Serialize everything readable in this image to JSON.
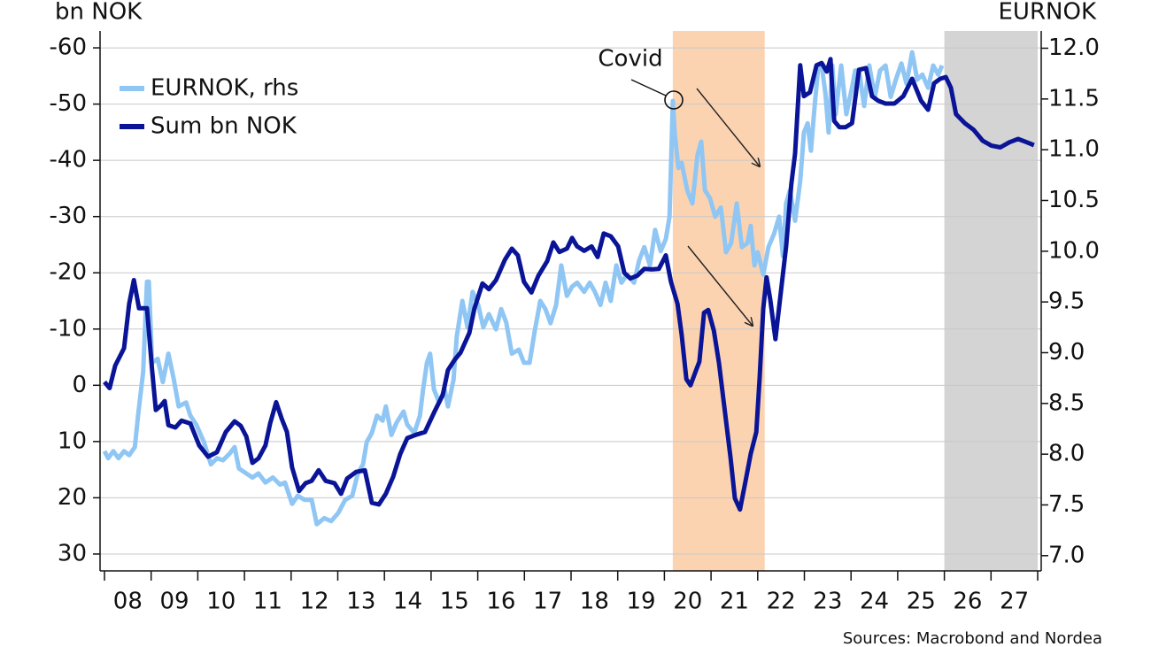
{
  "chart_data": {
    "type": "line",
    "axis_labels": {
      "y": "bn NOK",
      "y2": "EURNOK"
    },
    "source": "Sources: Macrobond and Nordea",
    "annotations": [
      {
        "text": "Covid"
      }
    ],
    "xlim": [
      2008,
      2028
    ],
    "xticks": [
      {
        "value": 2008,
        "label": "08"
      },
      {
        "value": 2009,
        "label": "09"
      },
      {
        "value": 2010,
        "label": "10"
      },
      {
        "value": 2011,
        "label": "11"
      },
      {
        "value": 2012,
        "label": "12"
      },
      {
        "value": 2013,
        "label": "13"
      },
      {
        "value": 2014,
        "label": "14"
      },
      {
        "value": 2015,
        "label": "15"
      },
      {
        "value": 2016,
        "label": "16"
      },
      {
        "value": 2017,
        "label": "17"
      },
      {
        "value": 2018,
        "label": "18"
      },
      {
        "value": 2019,
        "label": "19"
      },
      {
        "value": 2020,
        "label": "20"
      },
      {
        "value": 2021,
        "label": "21"
      },
      {
        "value": 2022,
        "label": "22"
      },
      {
        "value": 2023,
        "label": "23"
      },
      {
        "value": 2024,
        "label": "24"
      },
      {
        "value": 2025,
        "label": "25"
      },
      {
        "value": 2026,
        "label": "26"
      },
      {
        "value": 2027,
        "label": "27"
      }
    ],
    "ylim": [
      33,
      -63
    ],
    "yticks": [
      -60,
      -50,
      -40,
      -30,
      -20,
      -10,
      0,
      10,
      20,
      30
    ],
    "y2lim": [
      6.85,
      12.17
    ],
    "y2ticks": [
      {
        "value": 12,
        "label": "12.0"
      },
      11.5,
      {
        "value": 11,
        "label": "11.0"
      },
      10.5,
      {
        "value": 10,
        "label": "10.0"
      },
      9.5,
      {
        "value": 9,
        "label": "9.0"
      },
      8.5,
      {
        "value": 8,
        "label": "8.0"
      },
      7.5,
      {
        "value": 7,
        "label": "7.0"
      }
    ],
    "grid": true,
    "shaded_regions": [
      {
        "x": [
          2020.18,
          2022.15
        ],
        "color": "#fcd3b1"
      },
      {
        "x": [
          2026.0,
          2028.0
        ],
        "color": "#d4d4d4"
      }
    ],
    "series": [
      {
        "name": "EURNOK, rhs",
        "color": "#8fc6f4",
        "axis": "y2",
        "x": [
          2008.0,
          2008.08,
          2008.19,
          2008.3,
          2008.42,
          2008.53,
          2008.65,
          2008.72,
          2008.83,
          2008.91,
          2008.95,
          2009.02,
          2009.14,
          2009.25,
          2009.37,
          2009.48,
          2009.59,
          2009.75,
          2009.84,
          2009.97,
          2010.13,
          2010.28,
          2010.41,
          2010.54,
          2010.69,
          2010.79,
          2010.88,
          2011.04,
          2011.17,
          2011.3,
          2011.45,
          2011.61,
          2011.76,
          2011.87,
          2012.02,
          2012.14,
          2012.29,
          2012.44,
          2012.55,
          2012.71,
          2012.86,
          2013.01,
          2013.16,
          2013.31,
          2013.43,
          2013.54,
          2013.62,
          2013.73,
          2013.84,
          2013.96,
          2014.03,
          2014.15,
          2014.26,
          2014.41,
          2014.49,
          2014.64,
          2014.76,
          2014.83,
          2014.91,
          2014.98,
          2015.06,
          2015.17,
          2015.29,
          2015.36,
          2015.48,
          2015.55,
          2015.67,
          2015.78,
          2015.89,
          2016.01,
          2016.12,
          2016.24,
          2016.39,
          2016.5,
          2016.61,
          2016.73,
          2016.88,
          2016.99,
          2017.11,
          2017.22,
          2017.34,
          2017.45,
          2017.56,
          2017.68,
          2017.79,
          2017.91,
          2018.02,
          2018.13,
          2018.28,
          2018.4,
          2018.51,
          2018.63,
          2018.74,
          2018.85,
          2018.97,
          2019.08,
          2019.2,
          2019.35,
          2019.46,
          2019.57,
          2019.69,
          2019.8,
          2019.92,
          2020.03,
          2020.11,
          2020.18,
          2020.22,
          2020.3,
          2020.37,
          2020.49,
          2020.6,
          2020.71,
          2020.79,
          2020.87,
          2020.98,
          2021.09,
          2021.21,
          2021.32,
          2021.43,
          2021.55,
          2021.66,
          2021.78,
          2021.85,
          2021.93,
          2022.0,
          2022.12,
          2022.23,
          2022.35,
          2022.46,
          2022.54,
          2022.61,
          2022.69,
          2022.8,
          2022.91,
          2022.99,
          2023.07,
          2023.14,
          2023.22,
          2023.29,
          2023.37,
          2023.45,
          2023.52,
          2023.6,
          2023.67,
          2023.79,
          2023.9,
          2024.02,
          2024.09,
          2024.17,
          2024.28,
          2024.39,
          2024.51,
          2024.62,
          2024.74,
          2024.85,
          2024.96,
          2025.08,
          2025.19,
          2025.31,
          2025.42,
          2025.53,
          2025.65,
          2025.76,
          2025.87,
          2025.95
        ],
        "values": [
          8.03,
          7.96,
          8.03,
          7.96,
          8.03,
          7.99,
          8.07,
          8.38,
          8.81,
          9.7,
          9.7,
          8.9,
          8.94,
          8.71,
          8.99,
          8.75,
          8.47,
          8.51,
          8.38,
          8.29,
          8.12,
          7.9,
          7.96,
          7.94,
          8.01,
          8.07,
          7.86,
          7.81,
          7.77,
          7.81,
          7.72,
          7.77,
          7.7,
          7.72,
          7.51,
          7.59,
          7.55,
          7.55,
          7.31,
          7.37,
          7.34,
          7.42,
          7.55,
          7.59,
          7.81,
          7.9,
          8.12,
          8.21,
          8.38,
          8.33,
          8.47,
          8.19,
          8.31,
          8.42,
          8.29,
          8.21,
          8.38,
          8.64,
          8.9,
          8.99,
          8.64,
          8.51,
          8.64,
          8.47,
          8.73,
          9.16,
          9.51,
          9.25,
          9.6,
          9.47,
          9.25,
          9.38,
          9.23,
          9.43,
          9.3,
          8.99,
          9.03,
          8.9,
          8.9,
          9.21,
          9.51,
          9.43,
          9.29,
          9.47,
          9.86,
          9.56,
          9.65,
          9.69,
          9.6,
          9.69,
          9.6,
          9.47,
          9.69,
          9.51,
          9.86,
          9.69,
          9.77,
          9.69,
          9.91,
          10.04,
          9.86,
          10.21,
          10.0,
          10.12,
          10.34,
          11.48,
          11.17,
          10.82,
          10.87,
          10.6,
          10.47,
          10.95,
          11.08,
          10.6,
          10.52,
          10.34,
          10.43,
          9.99,
          10.08,
          10.47,
          10.04,
          10.08,
          10.25,
          9.86,
          9.99,
          9.77,
          10.04,
          10.17,
          10.34,
          9.95,
          10.47,
          10.6,
          10.3,
          10.69,
          11.17,
          11.26,
          10.99,
          11.43,
          11.78,
          11.83,
          11.56,
          11.17,
          11.83,
          11.35,
          11.83,
          11.35,
          11.61,
          11.78,
          11.78,
          11.43,
          11.83,
          11.52,
          11.78,
          11.83,
          11.52,
          11.69,
          11.85,
          11.65,
          11.96,
          11.69,
          11.74,
          11.61,
          11.83,
          11.74,
          11.83
        ]
      },
      {
        "name": "Sum bn NOK",
        "color": "#0a1497",
        "axis": "y",
        "x": [
          2008.0,
          2008.11,
          2008.23,
          2008.42,
          2008.53,
          2008.63,
          2008.74,
          2008.91,
          2009.02,
          2009.1,
          2009.21,
          2009.29,
          2009.37,
          2009.52,
          2009.65,
          2009.84,
          2010.03,
          2010.22,
          2010.41,
          2010.6,
          2010.79,
          2010.92,
          2011.04,
          2011.17,
          2011.3,
          2011.45,
          2011.55,
          2011.68,
          2011.8,
          2011.91,
          2012.02,
          2012.17,
          2012.31,
          2012.44,
          2012.59,
          2012.74,
          2012.93,
          2013.07,
          2013.2,
          2013.39,
          2013.58,
          2013.73,
          2013.88,
          2014.03,
          2014.19,
          2014.34,
          2014.49,
          2014.68,
          2014.87,
          2015.06,
          2015.25,
          2015.36,
          2015.51,
          2015.63,
          2015.82,
          2015.93,
          2016.1,
          2016.24,
          2016.39,
          2016.58,
          2016.73,
          2016.86,
          2016.99,
          2017.15,
          2017.3,
          2017.49,
          2017.62,
          2017.75,
          2017.91,
          2018.02,
          2018.13,
          2018.28,
          2018.44,
          2018.57,
          2018.7,
          2018.85,
          2019.01,
          2019.14,
          2019.27,
          2019.42,
          2019.57,
          2019.73,
          2019.88,
          2020.03,
          2020.14,
          2020.28,
          2020.37,
          2020.47,
          2020.56,
          2020.68,
          2020.75,
          2020.85,
          2020.94,
          2021.06,
          2021.17,
          2021.28,
          2021.42,
          2021.51,
          2021.62,
          2021.74,
          2021.85,
          2021.97,
          2022.04,
          2022.12,
          2022.19,
          2022.27,
          2022.38,
          2022.5,
          2022.61,
          2022.72,
          2022.8,
          2022.91,
          2022.99,
          2023.12,
          2023.26,
          2023.37,
          2023.48,
          2023.56,
          2023.64,
          2023.75,
          2023.88,
          2024.02,
          2024.17,
          2024.32,
          2024.45,
          2024.58,
          2024.74,
          2024.93,
          2025.12,
          2025.31,
          2025.5,
          2025.65,
          2025.78,
          2025.91,
          2026.03,
          2026.14,
          2026.25,
          2026.44,
          2026.63,
          2026.82,
          2027.01,
          2027.2,
          2027.39,
          2027.58,
          2027.77,
          2027.92
        ],
        "values": [
          -0.6,
          0.5,
          -3.5,
          -6.6,
          -14.5,
          -18.7,
          -13.7,
          -13.7,
          -2.7,
          4.4,
          3.6,
          2.8,
          7.1,
          7.5,
          6.3,
          6.8,
          10.7,
          12.7,
          11.9,
          8.3,
          6.4,
          7.2,
          9.1,
          13.8,
          13.0,
          10.7,
          6.8,
          3.0,
          6.0,
          8.3,
          14.6,
          18.8,
          17.4,
          17.0,
          15.1,
          17.0,
          17.4,
          19.3,
          16.6,
          15.4,
          15.1,
          20.9,
          21.2,
          19.3,
          16.2,
          12.2,
          9.4,
          8.8,
          8.3,
          4.9,
          1.7,
          -2.7,
          -4.6,
          -5.8,
          -9.3,
          -13.7,
          -18.1,
          -17.1,
          -18.7,
          -22.3,
          -24.3,
          -23.1,
          -18.4,
          -16.5,
          -19.5,
          -22.1,
          -25.4,
          -23.7,
          -24.3,
          -26.2,
          -24.7,
          -23.9,
          -24.7,
          -22.8,
          -27.0,
          -26.5,
          -24.7,
          -20.0,
          -19.0,
          -19.5,
          -20.7,
          -20.6,
          -20.7,
          -23.1,
          -18.4,
          -14.5,
          -9.0,
          -1.1,
          0,
          -2.7,
          -4.2,
          -12.9,
          -13.4,
          -9.7,
          -3.9,
          3.6,
          13.0,
          20.1,
          22.1,
          17.0,
          12.2,
          8.3,
          -1.1,
          -13.7,
          -19.2,
          -15.2,
          -8.2,
          -16.8,
          -24.7,
          -35.7,
          -41.2,
          -56.9,
          -51.4,
          -52.1,
          -56.9,
          -57.3,
          -55.8,
          -58.0,
          -47.0,
          -45.9,
          -45.9,
          -46.6,
          -56.1,
          -56.4,
          -51.4,
          -50.6,
          -50.1,
          -50.1,
          -51.4,
          -54.5,
          -50.6,
          -49.0,
          -53.7,
          -54.5,
          -54.8,
          -52.9,
          -48.2,
          -46.6,
          -45.4,
          -43.5,
          -42.6,
          -42.3,
          -43.2,
          -43.8,
          -43.2,
          -42.7
        ]
      }
    ]
  }
}
